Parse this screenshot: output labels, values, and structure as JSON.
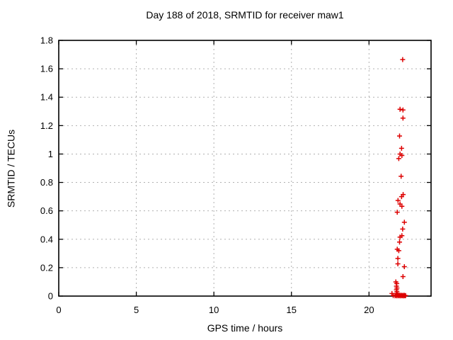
{
  "chart_data": {
    "type": "scatter",
    "title": "Day 188 of 2018, SRMTID for receiver maw1",
    "xlabel": "GPS time / hours",
    "ylabel": "SRMTID / TECUs",
    "xlim": [
      0,
      24
    ],
    "ylim": [
      0,
      1.8
    ],
    "xticks": [
      {
        "value": 0,
        "label": "0"
      },
      {
        "value": 5,
        "label": "5"
      },
      {
        "value": 10,
        "label": "10"
      },
      {
        "value": 15,
        "label": "15"
      },
      {
        "value": 20,
        "label": "20"
      }
    ],
    "yticks": [
      {
        "value": 0,
        "label": "0"
      },
      {
        "value": 0.2,
        "label": "0.2"
      },
      {
        "value": 0.4,
        "label": "0.4"
      },
      {
        "value": 0.6,
        "label": "0.6"
      },
      {
        "value": 0.8,
        "label": "0.8"
      },
      {
        "value": 1,
        "label": "1"
      },
      {
        "value": 1.2,
        "label": "1.2"
      },
      {
        "value": 1.4,
        "label": "1.4"
      },
      {
        "value": 1.6,
        "label": "1.6"
      },
      {
        "value": 1.8,
        "label": "1.8"
      }
    ],
    "grid": true,
    "legend_position": "none",
    "marker": "plus",
    "colors": {
      "marker": "#dd0000",
      "grid": "#b0b0b0",
      "axis": "#000000",
      "background": "#ffffff"
    },
    "series": [
      {
        "name": "SRMTID",
        "points": [
          [
            22.17,
            1.665
          ],
          [
            22.0,
            1.315
          ],
          [
            22.19,
            1.31
          ],
          [
            22.19,
            1.253
          ],
          [
            21.97,
            1.127
          ],
          [
            22.1,
            1.04
          ],
          [
            22.0,
            1.0
          ],
          [
            22.12,
            0.99
          ],
          [
            21.92,
            0.968
          ],
          [
            22.07,
            0.843
          ],
          [
            22.2,
            0.715
          ],
          [
            22.1,
            0.7
          ],
          [
            21.87,
            0.673
          ],
          [
            22.0,
            0.648
          ],
          [
            22.12,
            0.632
          ],
          [
            21.82,
            0.59
          ],
          [
            22.28,
            0.52
          ],
          [
            22.17,
            0.472
          ],
          [
            22.12,
            0.425
          ],
          [
            22.0,
            0.415
          ],
          [
            21.97,
            0.38
          ],
          [
            21.82,
            0.33
          ],
          [
            21.92,
            0.32
          ],
          [
            21.86,
            0.265
          ],
          [
            21.86,
            0.227
          ],
          [
            22.28,
            0.207
          ],
          [
            22.19,
            0.137
          ],
          [
            21.73,
            0.1
          ],
          [
            21.79,
            0.088
          ],
          [
            21.77,
            0.07
          ],
          [
            21.8,
            0.057
          ],
          [
            21.77,
            0.044
          ],
          [
            21.8,
            0.031
          ],
          [
            21.77,
            0.018
          ],
          [
            21.48,
            0.018
          ],
          [
            21.56,
            0.004
          ],
          [
            21.68,
            0.002
          ],
          [
            21.74,
            0.006
          ],
          [
            21.8,
            0.001
          ],
          [
            21.86,
            0.008
          ],
          [
            21.91,
            0.002
          ],
          [
            21.96,
            0.006
          ],
          [
            22.01,
            0.001
          ],
          [
            22.06,
            0.007
          ],
          [
            22.11,
            0.002
          ],
          [
            22.16,
            0.005
          ],
          [
            22.21,
            0.001
          ],
          [
            22.26,
            0.006
          ],
          [
            22.31,
            0.002
          ],
          [
            22.36,
            0.004
          ]
        ]
      }
    ]
  }
}
